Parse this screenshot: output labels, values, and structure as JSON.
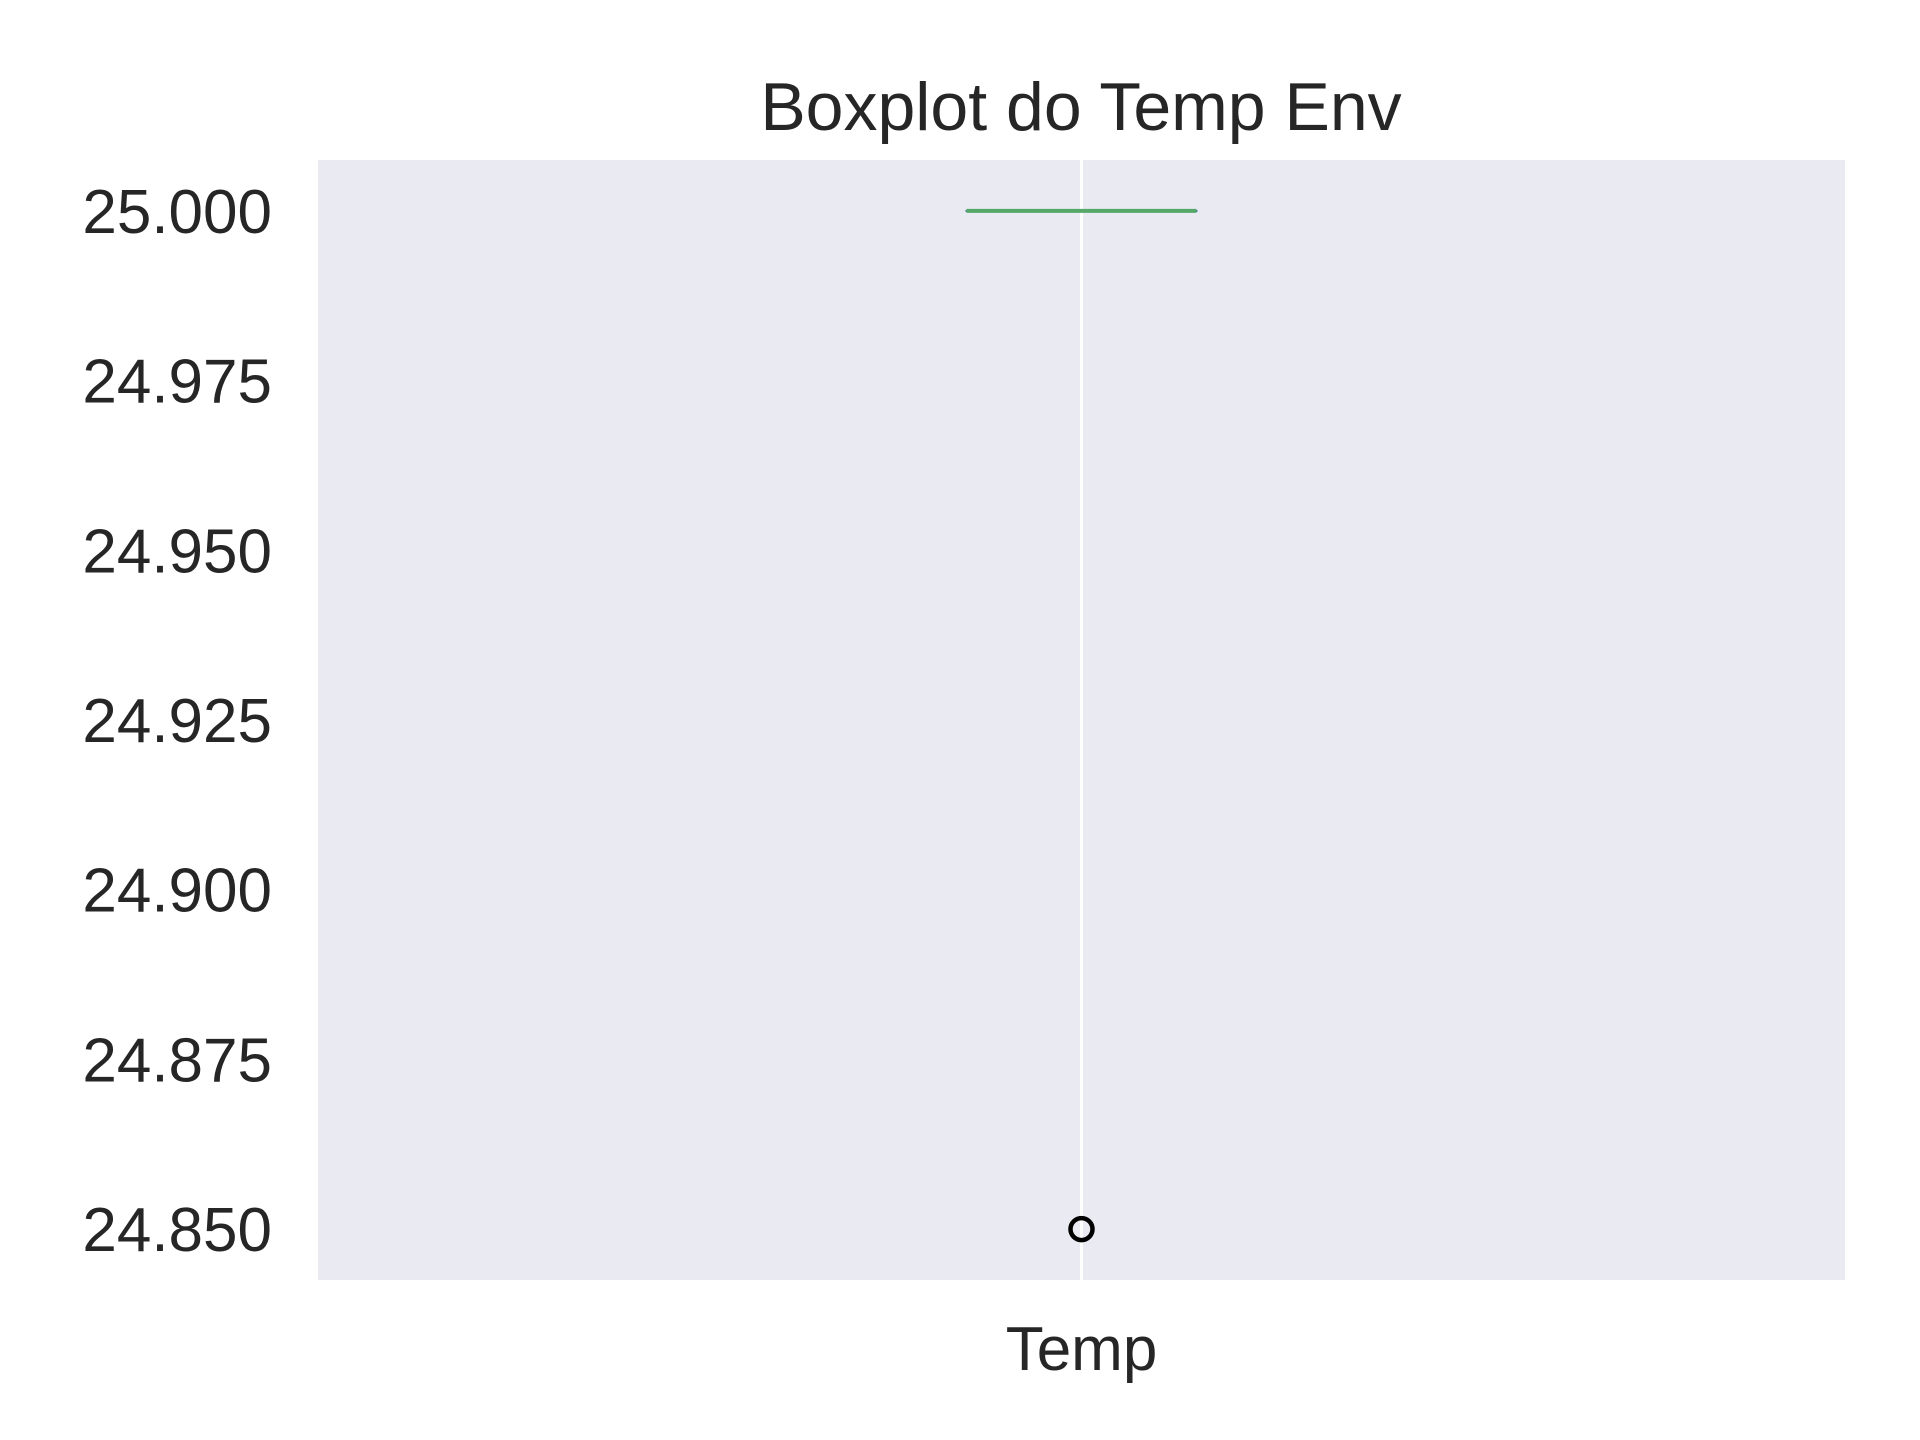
{
  "chart_data": {
    "type": "box",
    "title": "Boxplot do Temp Env",
    "xlabel": "",
    "ylabel": "",
    "categories": [
      "Temp"
    ],
    "series": [
      {
        "category": "Temp",
        "whisker_low": 25.0,
        "q1": 25.0,
        "median": 25.0,
        "q3": 25.0,
        "whisker_high": 25.0,
        "outliers": [
          24.85
        ]
      }
    ],
    "y_ticks": [
      25.0,
      24.975,
      24.95,
      24.925,
      24.9,
      24.875,
      24.85
    ],
    "y_tick_labels": [
      "25.000",
      "24.975",
      "24.950",
      "24.925",
      "24.900",
      "24.875",
      "24.850"
    ],
    "ylim": [
      24.8425,
      25.0075
    ],
    "grid": true,
    "colors": {
      "plot_background": "#EAEAF2",
      "gridline": "#FFFFFF",
      "median": "#55A868",
      "outlier_edge": "#000000",
      "text": "#262626"
    }
  }
}
